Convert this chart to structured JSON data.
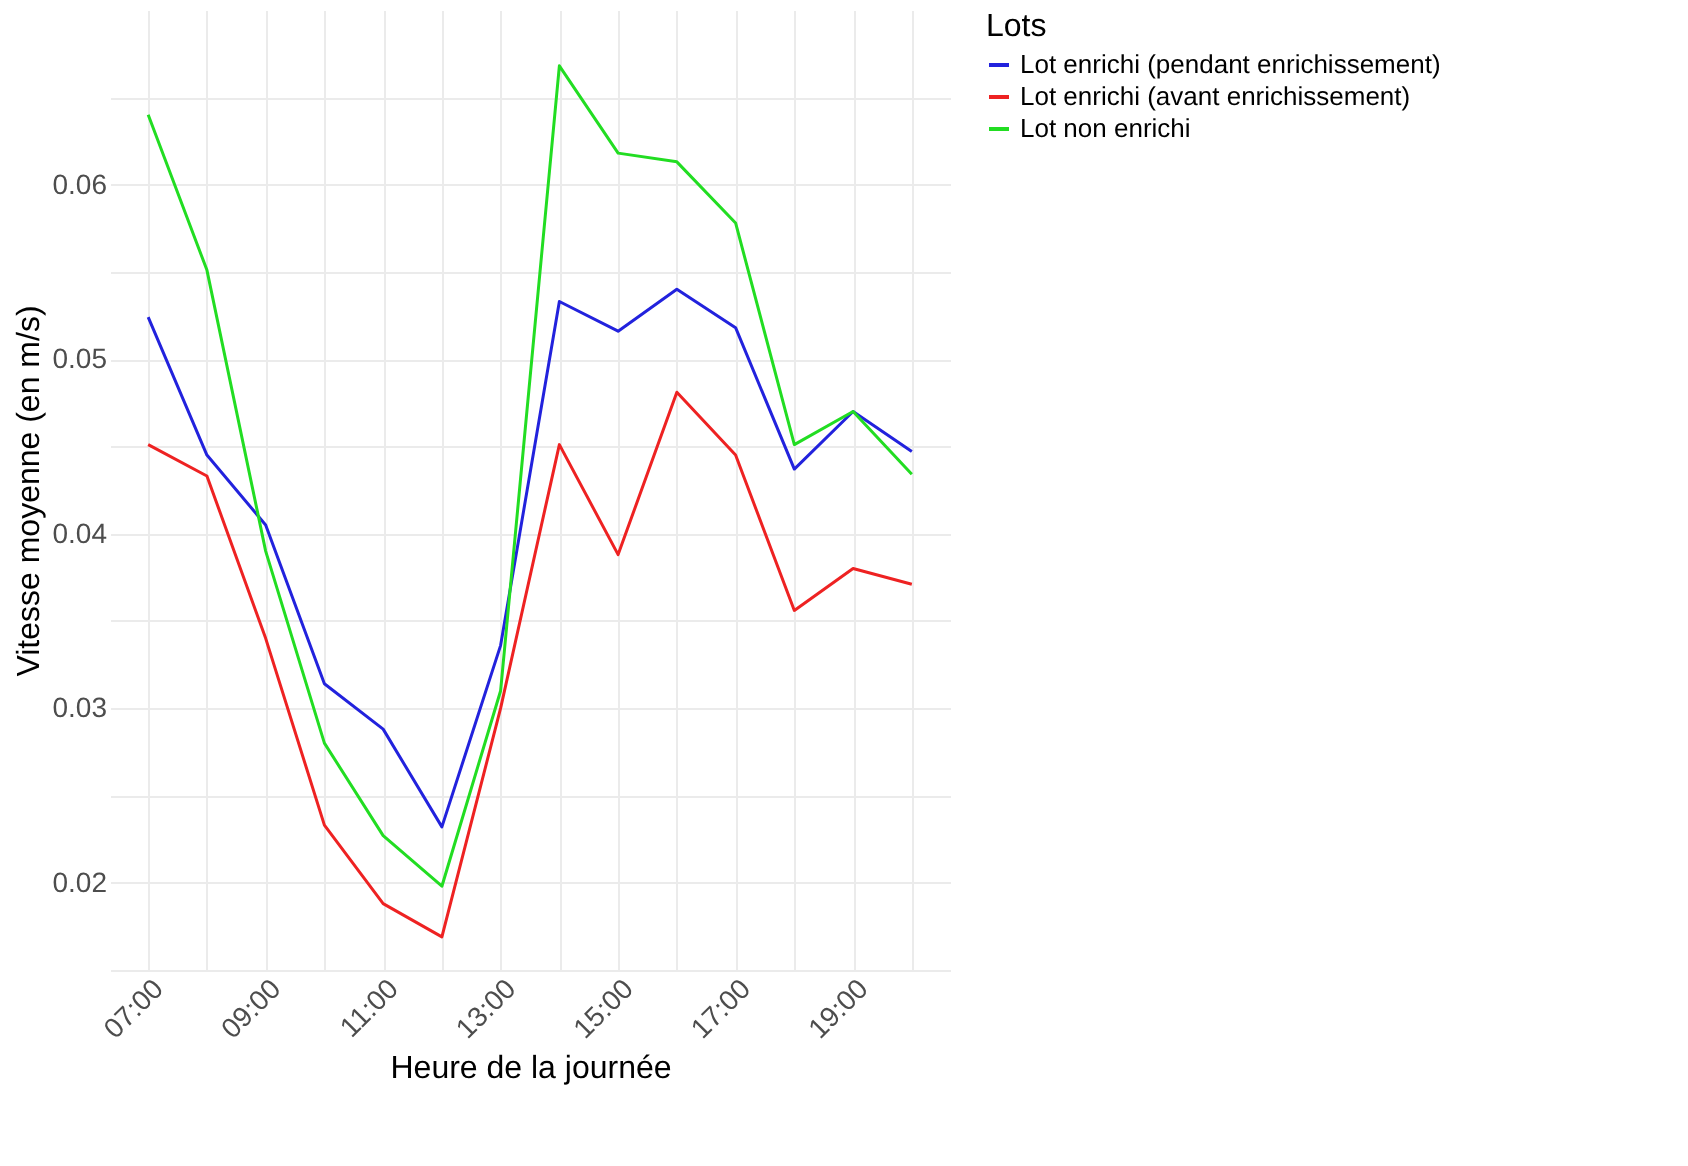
{
  "chart_data": {
    "type": "line",
    "xlabel": "Heure de la journée",
    "ylabel": "Vitesse moyenne (en m/s)",
    "legend_title": "Lots",
    "legend": "right",
    "grid": true,
    "line_style": "solid",
    "marker": "none",
    "x": [
      7,
      8,
      9,
      10,
      11,
      12,
      13,
      14,
      15,
      16,
      17,
      18,
      19,
      20
    ],
    "xlim": [
      6.35,
      20.65
    ],
    "xticks": [
      {
        "value": 7,
        "label": "07:00"
      },
      {
        "value": 8,
        "label": null
      },
      {
        "value": 9,
        "label": "09:00"
      },
      {
        "value": 10,
        "label": null
      },
      {
        "value": 11,
        "label": "11:00"
      },
      {
        "value": 12,
        "label": null
      },
      {
        "value": 13,
        "label": "13:00"
      },
      {
        "value": 14,
        "label": null
      },
      {
        "value": 15,
        "label": "15:00"
      },
      {
        "value": 16,
        "label": null
      },
      {
        "value": 17,
        "label": "17:00"
      },
      {
        "value": 18,
        "label": null
      },
      {
        "value": 19,
        "label": "19:00"
      },
      {
        "value": 20,
        "label": null
      }
    ],
    "ylim": [
      0.015,
      0.07
    ],
    "yticks": [
      {
        "value": 0.015,
        "label": null
      },
      0.02,
      {
        "value": 0.025,
        "label": null
      },
      0.03,
      {
        "value": 0.035,
        "label": null
      },
      0.04,
      {
        "value": 0.045,
        "label": null
      },
      0.05,
      {
        "value": 0.055,
        "label": null
      },
      0.06,
      {
        "value": 0.065,
        "label": null
      }
    ],
    "series": [
      {
        "name": "Lot enrichi (pendant enrichissement)",
        "color": "#2222dd",
        "values": [
          0.0524,
          0.0445,
          0.0405,
          0.0314,
          0.0288,
          0.0232,
          0.0336,
          0.0533,
          0.0516,
          0.054,
          0.0518,
          0.0437,
          0.047,
          0.0447
        ]
      },
      {
        "name": "Lot enrichi (avant enrichissement)",
        "color": "#ee2222",
        "values": [
          0.0451,
          0.0433,
          0.034,
          0.0233,
          0.0188,
          0.0169,
          0.03,
          0.0451,
          0.0388,
          0.0481,
          0.0445,
          0.0356,
          0.038,
          0.0371
        ]
      },
      {
        "name": "Lot non enrichi",
        "color": "#22dd22",
        "values": [
          0.064,
          0.0551,
          0.039,
          0.028,
          0.0227,
          0.0198,
          0.031,
          0.0668,
          0.0618,
          0.0613,
          0.0578,
          0.0451,
          0.047,
          0.0434
        ]
      }
    ]
  }
}
